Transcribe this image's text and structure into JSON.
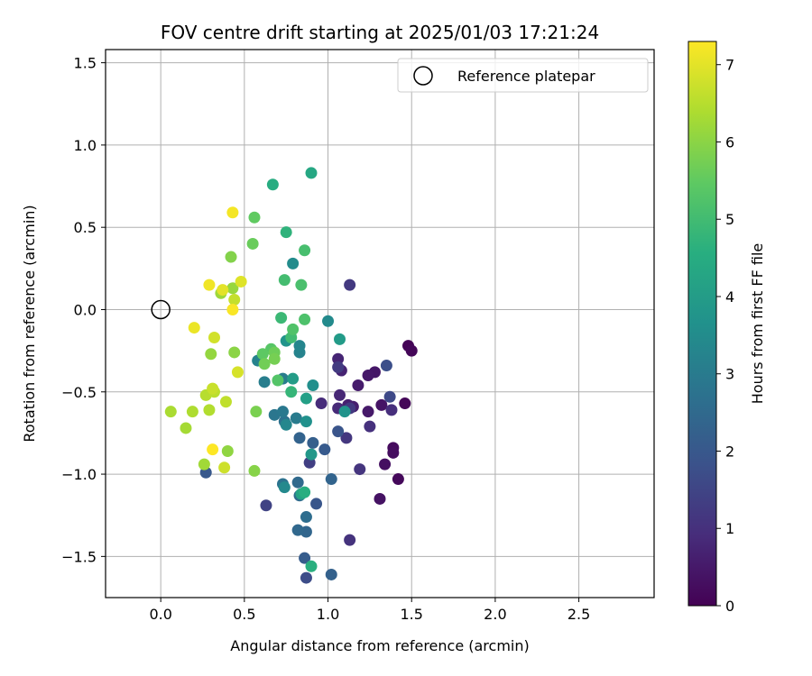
{
  "chart_data": {
    "type": "scatter",
    "title": "FOV centre drift starting at 2025/01/03 17:21:24",
    "xlabel": "Angular distance from reference (arcmin)",
    "ylabel": "Rotation from reference (arcmin)",
    "xlim": [
      -0.33,
      2.95
    ],
    "ylim": [
      -1.75,
      1.58
    ],
    "xticks": [
      0.0,
      0.5,
      1.0,
      1.5,
      2.0,
      2.5
    ],
    "xtick_labels": [
      "0.0",
      "0.5",
      "1.0",
      "1.5",
      "2.0",
      "2.5"
    ],
    "yticks": [
      -1.5,
      -1.0,
      -0.5,
      0.0,
      0.5,
      1.0,
      1.5
    ],
    "ytick_labels": [
      "−1.5",
      "−1.0",
      "−0.5",
      "0.0",
      "0.5",
      "1.0",
      "1.5"
    ],
    "grid": true,
    "legend": {
      "position": "top-right",
      "entries": [
        "Reference platepar"
      ]
    },
    "reference_point": {
      "x": 0.0,
      "y": 0.0,
      "label": "Reference platepar"
    },
    "colorbar": {
      "label": "Hours from first FF file",
      "min": 0,
      "max": 7.3,
      "ticks": [
        0,
        1,
        2,
        3,
        4,
        5,
        6,
        7
      ],
      "tick_labels": [
        "0",
        "1",
        "2",
        "3",
        "4",
        "5",
        "6",
        "7"
      ],
      "colormap": "viridis"
    },
    "points": [
      {
        "x": 1.48,
        "y": -0.22,
        "t": 0.05
      },
      {
        "x": 1.5,
        "y": -0.25,
        "t": 0.1
      },
      {
        "x": 1.46,
        "y": -0.57,
        "t": 0.1
      },
      {
        "x": 1.42,
        "y": -1.03,
        "t": 0.15
      },
      {
        "x": 1.39,
        "y": -0.84,
        "t": 0.2
      },
      {
        "x": 1.39,
        "y": -0.87,
        "t": 0.25
      },
      {
        "x": 1.34,
        "y": -0.94,
        "t": 0.3
      },
      {
        "x": 1.31,
        "y": -1.15,
        "t": 0.35
      },
      {
        "x": 1.32,
        "y": -0.58,
        "t": 0.4
      },
      {
        "x": 1.28,
        "y": -0.38,
        "t": 0.45
      },
      {
        "x": 1.24,
        "y": -0.4,
        "t": 0.5
      },
      {
        "x": 1.24,
        "y": -0.62,
        "t": 0.5
      },
      {
        "x": 1.18,
        "y": -0.46,
        "t": 0.55
      },
      {
        "x": 1.15,
        "y": -0.59,
        "t": 0.6
      },
      {
        "x": 1.12,
        "y": -0.58,
        "t": 0.65
      },
      {
        "x": 1.08,
        "y": -0.37,
        "t": 0.7
      },
      {
        "x": 1.06,
        "y": -0.3,
        "t": 0.75
      },
      {
        "x": 1.07,
        "y": -0.52,
        "t": 0.8
      },
      {
        "x": 1.06,
        "y": -0.6,
        "t": 0.85
      },
      {
        "x": 0.96,
        "y": -0.57,
        "t": 0.9
      },
      {
        "x": 1.38,
        "y": -0.61,
        "t": 0.95
      },
      {
        "x": 1.25,
        "y": -0.71,
        "t": 1.0
      },
      {
        "x": 1.13,
        "y": -1.4,
        "t": 1.05
      },
      {
        "x": 1.19,
        "y": -0.97,
        "t": 1.1
      },
      {
        "x": 1.11,
        "y": -0.78,
        "t": 1.15
      },
      {
        "x": 1.13,
        "y": -0.6,
        "t": 1.2
      },
      {
        "x": 1.06,
        "y": -0.35,
        "t": 1.25
      },
      {
        "x": 1.13,
        "y": 0.15,
        "t": 1.2
      },
      {
        "x": 0.89,
        "y": -0.93,
        "t": 1.35
      },
      {
        "x": 0.63,
        "y": -1.19,
        "t": 1.45
      },
      {
        "x": 1.37,
        "y": -0.53,
        "t": 1.6
      },
      {
        "x": 0.87,
        "y": -1.63,
        "t": 1.7
      },
      {
        "x": 1.35,
        "y": -0.34,
        "t": 1.75
      },
      {
        "x": 1.06,
        "y": -0.74,
        "t": 1.9
      },
      {
        "x": 0.93,
        "y": -1.18,
        "t": 1.95
      },
      {
        "x": 0.27,
        "y": -0.99,
        "t": 2.0
      },
      {
        "x": 0.98,
        "y": -0.85,
        "t": 2.05
      },
      {
        "x": 0.86,
        "y": -1.51,
        "t": 2.1
      },
      {
        "x": 0.91,
        "y": -0.81,
        "t": 2.2
      },
      {
        "x": 1.02,
        "y": -1.61,
        "t": 2.25
      },
      {
        "x": 0.83,
        "y": -0.78,
        "t": 2.3
      },
      {
        "x": 1.02,
        "y": -1.03,
        "t": 2.35
      },
      {
        "x": 0.87,
        "y": -1.35,
        "t": 2.4
      },
      {
        "x": 0.82,
        "y": -1.34,
        "t": 2.45
      },
      {
        "x": 0.82,
        "y": -1.05,
        "t": 2.5
      },
      {
        "x": 0.83,
        "y": -1.13,
        "t": 2.55
      },
      {
        "x": 0.87,
        "y": -1.26,
        "t": 2.6
      },
      {
        "x": 0.74,
        "y": -0.68,
        "t": 2.7
      },
      {
        "x": 0.73,
        "y": -1.06,
        "t": 2.75
      },
      {
        "x": 0.68,
        "y": -0.64,
        "t": 2.85
      },
      {
        "x": 0.73,
        "y": -0.62,
        "t": 2.9
      },
      {
        "x": 0.81,
        "y": -0.66,
        "t": 3.0
      },
      {
        "x": 0.73,
        "y": -0.42,
        "t": 3.05
      },
      {
        "x": 0.62,
        "y": -0.44,
        "t": 3.1
      },
      {
        "x": 0.58,
        "y": -0.31,
        "t": 3.2
      },
      {
        "x": 0.83,
        "y": -0.26,
        "t": 3.25
      },
      {
        "x": 0.83,
        "y": -0.22,
        "t": 3.3
      },
      {
        "x": 0.75,
        "y": -0.7,
        "t": 3.35
      },
      {
        "x": 0.74,
        "y": -1.08,
        "t": 3.4
      },
      {
        "x": 1.0,
        "y": -0.07,
        "t": 3.45
      },
      {
        "x": 0.79,
        "y": 0.28,
        "t": 3.5
      },
      {
        "x": 0.91,
        "y": -0.46,
        "t": 3.6
      },
      {
        "x": 0.87,
        "y": -0.68,
        "t": 3.65
      },
      {
        "x": 1.1,
        "y": -0.62,
        "t": 3.7
      },
      {
        "x": 0.75,
        "y": -0.19,
        "t": 3.75
      },
      {
        "x": 0.9,
        "y": -0.88,
        "t": 3.85
      },
      {
        "x": 1.07,
        "y": -0.18,
        "t": 3.95
      },
      {
        "x": 0.79,
        "y": -0.42,
        "t": 4.0
      },
      {
        "x": 0.87,
        "y": -0.54,
        "t": 4.1
      },
      {
        "x": 0.84,
        "y": -1.12,
        "t": 4.2
      },
      {
        "x": 0.9,
        "y": 0.83,
        "t": 4.35
      },
      {
        "x": 0.67,
        "y": 0.76,
        "t": 4.5
      },
      {
        "x": 0.86,
        "y": -1.11,
        "t": 4.55
      },
      {
        "x": 0.9,
        "y": -1.56,
        "t": 4.6
      },
      {
        "x": 0.75,
        "y": 0.47,
        "t": 4.7
      },
      {
        "x": 0.78,
        "y": -0.5,
        "t": 4.8
      },
      {
        "x": 0.72,
        "y": -0.05,
        "t": 4.9
      },
      {
        "x": 0.78,
        "y": -0.17,
        "t": 5.0
      },
      {
        "x": 0.74,
        "y": 0.18,
        "t": 5.05
      },
      {
        "x": 0.86,
        "y": 0.36,
        "t": 5.1
      },
      {
        "x": 0.84,
        "y": 0.15,
        "t": 5.15
      },
      {
        "x": 0.86,
        "y": -0.06,
        "t": 5.2
      },
      {
        "x": 0.79,
        "y": -0.12,
        "t": 5.25
      },
      {
        "x": 0.7,
        "y": -0.43,
        "t": 5.3
      },
      {
        "x": 0.66,
        "y": -0.24,
        "t": 5.35
      },
      {
        "x": 0.61,
        "y": -0.27,
        "t": 5.45
      },
      {
        "x": 0.56,
        "y": 0.56,
        "t": 5.5
      },
      {
        "x": 0.55,
        "y": 0.4,
        "t": 5.6
      },
      {
        "x": 0.68,
        "y": -0.26,
        "t": 5.65
      },
      {
        "x": 0.62,
        "y": -0.33,
        "t": 5.7
      },
      {
        "x": 0.68,
        "y": -0.3,
        "t": 5.75
      },
      {
        "x": 0.57,
        "y": -0.62,
        "t": 5.8
      },
      {
        "x": 0.42,
        "y": 0.32,
        "t": 5.9
      },
      {
        "x": 0.56,
        "y": -0.98,
        "t": 5.95
      },
      {
        "x": 0.44,
        "y": -0.26,
        "t": 6.0
      },
      {
        "x": 0.4,
        "y": -0.86,
        "t": 6.05
      },
      {
        "x": 0.3,
        "y": -0.27,
        "t": 6.1
      },
      {
        "x": 0.43,
        "y": 0.13,
        "t": 6.15
      },
      {
        "x": 0.36,
        "y": 0.1,
        "t": 6.2
      },
      {
        "x": 0.26,
        "y": -0.94,
        "t": 6.25
      },
      {
        "x": 0.15,
        "y": -0.72,
        "t": 6.3
      },
      {
        "x": 0.06,
        "y": -0.62,
        "t": 6.35
      },
      {
        "x": 0.19,
        "y": -0.62,
        "t": 6.4
      },
      {
        "x": 0.29,
        "y": -0.61,
        "t": 6.45
      },
      {
        "x": 0.27,
        "y": -0.52,
        "t": 6.5
      },
      {
        "x": 0.32,
        "y": -0.5,
        "t": 6.55
      },
      {
        "x": 0.39,
        "y": -0.56,
        "t": 6.6
      },
      {
        "x": 0.44,
        "y": 0.06,
        "t": 6.65
      },
      {
        "x": 0.31,
        "y": -0.48,
        "t": 6.7
      },
      {
        "x": 0.38,
        "y": -0.96,
        "t": 6.75
      },
      {
        "x": 0.32,
        "y": -0.17,
        "t": 6.8
      },
      {
        "x": 0.46,
        "y": -0.38,
        "t": 6.85
      },
      {
        "x": 0.48,
        "y": 0.17,
        "t": 6.95
      },
      {
        "x": 0.37,
        "y": 0.12,
        "t": 7.0
      },
      {
        "x": 0.2,
        "y": -0.11,
        "t": 7.1
      },
      {
        "x": 0.29,
        "y": 0.15,
        "t": 7.15
      },
      {
        "x": 0.43,
        "y": 0.59,
        "t": 7.2
      },
      {
        "x": 0.43,
        "y": 0.0,
        "t": 7.25
      },
      {
        "x": 0.31,
        "y": -0.85,
        "t": 7.3
      }
    ]
  }
}
